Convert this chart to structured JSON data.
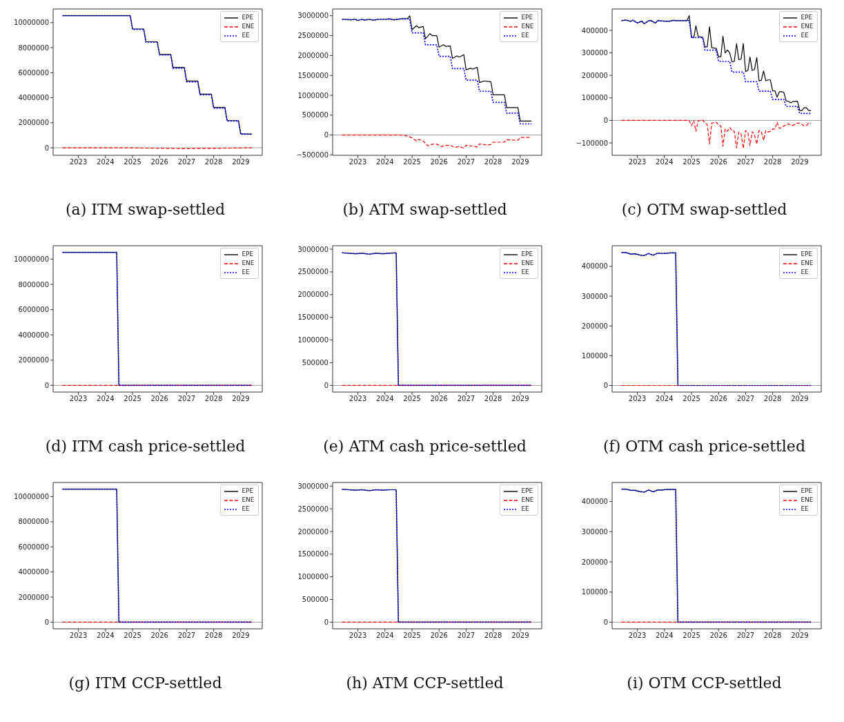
{
  "chart_data": [
    {
      "type": "line",
      "title": "(a) ITM swap-settled",
      "xlim": [
        "2022-01-25",
        "2029-10-18"
      ],
      "xticks": [
        "2023",
        "2024",
        "2025",
        "2026",
        "2027",
        "2028",
        "2029"
      ],
      "ylim": [
        -600000,
        11090000
      ],
      "yticks": [
        0,
        2000000,
        4000000,
        6000000,
        8000000,
        10000000
      ],
      "legend": "top right",
      "ref_lines": [
        {
          "axis": "y",
          "value": 0,
          "color": "#808080"
        }
      ],
      "series": [
        {
          "name": "EPE",
          "color": "#000000",
          "line_style": "solid",
          "x": [
            "2022-06",
            "2024-12",
            "2025-01",
            "2025-06",
            "2025-07",
            "2025-12",
            "2026-01",
            "2026-06",
            "2026-07",
            "2026-12",
            "2027-01",
            "2027-06",
            "2027-07",
            "2027-12",
            "2028-01",
            "2028-06",
            "2028-07",
            "2028-12",
            "2029-01",
            "2029-06"
          ],
          "values": [
            10560000,
            10560000,
            9490000,
            9490000,
            8470000,
            8470000,
            7460000,
            7460000,
            6420000,
            6420000,
            5340000,
            5340000,
            4290000,
            4290000,
            3220000,
            3220000,
            2170000,
            2170000,
            1100000,
            1100000
          ]
        },
        {
          "name": "ENE",
          "color": "#ff0000",
          "line_style": "dashed",
          "x": [
            "2022-06",
            "2024-12",
            "2025-06",
            "2026-01",
            "2026-06",
            "2027-01",
            "2027-06",
            "2028-01",
            "2028-06",
            "2029-01",
            "2029-06"
          ],
          "values": [
            0,
            0,
            -20000,
            -40000,
            -60000,
            -70000,
            -60000,
            -50000,
            -30000,
            -10000,
            0
          ]
        },
        {
          "name": "EE",
          "color": "#0000ff",
          "line_style": "dotted",
          "x": [
            "2022-06",
            "2024-12",
            "2025-01",
            "2025-06",
            "2025-07",
            "2025-12",
            "2026-01",
            "2026-06",
            "2026-07",
            "2026-12",
            "2027-01",
            "2027-06",
            "2027-07",
            "2027-12",
            "2028-01",
            "2028-06",
            "2028-07",
            "2028-12",
            "2029-01",
            "2029-06"
          ],
          "values": [
            10560000,
            10560000,
            9460000,
            9460000,
            8430000,
            8430000,
            7410000,
            7410000,
            6360000,
            6360000,
            5270000,
            5270000,
            4230000,
            4230000,
            3170000,
            3170000,
            2140000,
            2140000,
            1090000,
            1090000
          ]
        }
      ]
    },
    {
      "type": "line",
      "title": "(b) ATM swap-settled",
      "xlim": [
        "2022-01-25",
        "2029-10-18"
      ],
      "xticks": [
        "2023",
        "2024",
        "2025",
        "2026",
        "2027",
        "2028",
        "2029"
      ],
      "ylim": [
        -510000,
        3170000
      ],
      "yticks": [
        -500000,
        0,
        500000,
        1000000,
        1500000,
        2000000,
        2500000,
        3000000
      ],
      "legend": "top right",
      "ref_lines": [
        {
          "axis": "y",
          "value": 0,
          "color": "#808080"
        }
      ],
      "series": [
        {
          "name": "EPE",
          "color": "#000000",
          "line_style": "solid",
          "x": [
            "2022-06",
            "2022-10",
            "2022-12",
            "2023-01",
            "2023-03",
            "2023-04",
            "2023-06",
            "2023-08",
            "2023-10",
            "2024-01",
            "2024-03",
            "2024-05",
            "2024-08",
            "2024-11",
            "2024-12",
            "2025-01",
            "2025-03",
            "2025-04",
            "2025-06",
            "2025-07",
            "2025-09",
            "2025-10",
            "2025-12",
            "2026-01",
            "2026-03",
            "2026-04",
            "2026-06",
            "2026-07",
            "2026-09",
            "2026-10",
            "2026-12",
            "2027-01",
            "2027-03",
            "2027-04",
            "2027-06",
            "2027-07",
            "2027-09",
            "2027-12",
            "2028-01",
            "2028-06",
            "2028-07",
            "2028-12",
            "2029-01",
            "2029-06"
          ],
          "values": [
            2910000,
            2900000,
            2910000,
            2880000,
            2910000,
            2890000,
            2910000,
            2890000,
            2910000,
            2910000,
            2920000,
            2900000,
            2920000,
            2930000,
            3000000,
            2650000,
            2750000,
            2700000,
            2730000,
            2420000,
            2550000,
            2500000,
            2500000,
            2210000,
            2270000,
            2230000,
            2240000,
            1930000,
            1990000,
            1960000,
            2020000,
            1640000,
            1680000,
            1660000,
            1700000,
            1320000,
            1360000,
            1340000,
            1010000,
            1010000,
            690000,
            690000,
            350000,
            350000
          ]
        },
        {
          "name": "ENE",
          "color": "#ff0000",
          "line_style": "dashed",
          "x": [
            "2022-06",
            "2024-08",
            "2024-10",
            "2025-01",
            "2025-03",
            "2025-04",
            "2025-06",
            "2025-08",
            "2025-10",
            "2025-12",
            "2026-02",
            "2026-04",
            "2026-06",
            "2026-08",
            "2026-10",
            "2026-12",
            "2027-01",
            "2027-04",
            "2027-06",
            "2027-07",
            "2027-10",
            "2027-12",
            "2028-01",
            "2028-06",
            "2028-07",
            "2028-12",
            "2029-01",
            "2029-06"
          ],
          "values": [
            0,
            0,
            -10000,
            -70000,
            -150000,
            -110000,
            -150000,
            -270000,
            -230000,
            -230000,
            -290000,
            -260000,
            -260000,
            -310000,
            -290000,
            -330000,
            -260000,
            -280000,
            -300000,
            -220000,
            -250000,
            -240000,
            -180000,
            -180000,
            -120000,
            -130000,
            -60000,
            -60000
          ]
        },
        {
          "name": "EE",
          "color": "#0000ff",
          "line_style": "dotted",
          "x": [
            "2022-06",
            "2022-10",
            "2022-12",
            "2023-01",
            "2023-03",
            "2023-04",
            "2023-06",
            "2023-08",
            "2023-10",
            "2024-01",
            "2024-03",
            "2024-05",
            "2024-08",
            "2024-12",
            "2025-01",
            "2025-06",
            "2025-07",
            "2025-12",
            "2026-01",
            "2026-06",
            "2026-07",
            "2026-12",
            "2027-01",
            "2027-06",
            "2027-07",
            "2027-12",
            "2028-01",
            "2028-06",
            "2028-07",
            "2028-12",
            "2029-01",
            "2029-06"
          ],
          "values": [
            2910000,
            2900000,
            2910000,
            2880000,
            2910000,
            2890000,
            2910000,
            2890000,
            2910000,
            2910000,
            2920000,
            2900000,
            2920000,
            2920000,
            2570000,
            2570000,
            2270000,
            2270000,
            1980000,
            1980000,
            1670000,
            1670000,
            1380000,
            1380000,
            1100000,
            1100000,
            820000,
            820000,
            550000,
            550000,
            280000,
            280000
          ]
        }
      ]
    },
    {
      "type": "line",
      "title": "(c) OTM swap-settled",
      "xlim": [
        "2022-01-25",
        "2029-10-18"
      ],
      "xticks": [
        "2023",
        "2024",
        "2025",
        "2026",
        "2027",
        "2028",
        "2029"
      ],
      "ylim": [
        -155000,
        495000
      ],
      "yticks": [
        -100000,
        0,
        100000,
        200000,
        300000,
        400000
      ],
      "legend": "top right",
      "ref_lines": [
        {
          "axis": "y",
          "value": 0,
          "color": "#808080"
        }
      ],
      "series": [
        {
          "name": "EPE",
          "color": "#000000",
          "line_style": "solid",
          "x": [
            "2022-06",
            "2022-08",
            "2022-10",
            "2022-11",
            "2023-01",
            "2023-03",
            "2023-04",
            "2023-06",
            "2023-07",
            "2023-09",
            "2023-10",
            "2024-01",
            "2024-03",
            "2024-05",
            "2024-06",
            "2024-09",
            "2024-11",
            "2024-12",
            "2025-01",
            "2025-02",
            "2025-03",
            "2025-04",
            "2025-06",
            "2025-07",
            "2025-08",
            "2025-09",
            "2025-10",
            "2025-12",
            "2026-01",
            "2026-02",
            "2026-03",
            "2026-04",
            "2026-05",
            "2026-06",
            "2026-07",
            "2026-08",
            "2026-09",
            "2026-10",
            "2026-11",
            "2026-12",
            "2027-01",
            "2027-02",
            "2027-03",
            "2027-04",
            "2027-05",
            "2027-06",
            "2027-07",
            "2027-08",
            "2027-09",
            "2027-10",
            "2027-11",
            "2027-12",
            "2028-01",
            "2028-02",
            "2028-03",
            "2028-04",
            "2028-05",
            "2028-06",
            "2028-07",
            "2028-08",
            "2028-09",
            "2028-10",
            "2028-12",
            "2029-01",
            "2029-02",
            "2029-03",
            "2029-04",
            "2029-05",
            "2029-06"
          ],
          "values": [
            443000,
            446000,
            440000,
            445000,
            433000,
            441000,
            430000,
            442000,
            444000,
            432000,
            443000,
            441000,
            440000,
            445000,
            443000,
            443000,
            443000,
            466000,
            368000,
            368000,
            420000,
            372000,
            370000,
            327000,
            327000,
            416000,
            323000,
            320000,
            283000,
            283000,
            374000,
            300000,
            313000,
            300000,
            260000,
            262000,
            341000,
            270000,
            272000,
            341000,
            217000,
            222000,
            282000,
            222000,
            226000,
            279000,
            176000,
            178000,
            220000,
            176000,
            180000,
            180000,
            131000,
            131000,
            103000,
            127000,
            128000,
            124000,
            87000,
            85000,
            78000,
            84000,
            85000,
            44000,
            44000,
            56000,
            56000,
            44000,
            44000
          ]
        },
        {
          "name": "ENE",
          "color": "#ff0000",
          "line_style": "dashed",
          "x": [
            "2022-06",
            "2024-12",
            "2025-01",
            "2025-02",
            "2025-03",
            "2025-04",
            "2025-06",
            "2025-07",
            "2025-08",
            "2025-09",
            "2025-10",
            "2025-12",
            "2026-01",
            "2026-02",
            "2026-03",
            "2026-04",
            "2026-05",
            "2026-06",
            "2026-07",
            "2026-08",
            "2026-09",
            "2026-10",
            "2026-11",
            "2026-12",
            "2027-01",
            "2027-02",
            "2027-03",
            "2027-04",
            "2027-05",
            "2027-06",
            "2027-07",
            "2027-08",
            "2027-09",
            "2027-10",
            "2027-11",
            "2027-12",
            "2028-01",
            "2028-02",
            "2028-03",
            "2028-04",
            "2028-05",
            "2028-06",
            "2028-07",
            "2028-08",
            "2028-09",
            "2028-10",
            "2028-12",
            "2029-01",
            "2029-03",
            "2029-04",
            "2029-05",
            "2029-06"
          ],
          "values": [
            0,
            0,
            -22000,
            -2000,
            -48000,
            -2000,
            2000,
            -12000,
            -18000,
            -105000,
            -12000,
            -8000,
            -20000,
            -25000,
            -115000,
            -38000,
            -48000,
            -32000,
            -45000,
            -48000,
            -122000,
            -52000,
            -60000,
            -124000,
            -45000,
            -55000,
            -112000,
            -50000,
            -65000,
            -105000,
            -45000,
            -50000,
            -88000,
            -45000,
            -52000,
            -48000,
            -38000,
            -38000,
            -8000,
            -35000,
            -32000,
            -25000,
            -20000,
            -15000,
            -22000,
            -22000,
            -12000,
            -12000,
            -24000,
            -22000,
            -12000,
            -12000
          ]
        },
        {
          "name": "EE",
          "color": "#0000ff",
          "line_style": "dotted",
          "x": [
            "2022-06",
            "2022-08",
            "2022-10",
            "2022-11",
            "2023-01",
            "2023-03",
            "2023-04",
            "2023-06",
            "2023-07",
            "2023-09",
            "2023-10",
            "2024-01",
            "2024-03",
            "2024-05",
            "2024-06",
            "2024-09",
            "2024-12",
            "2025-01",
            "2025-06",
            "2025-07",
            "2025-12",
            "2026-01",
            "2026-06",
            "2026-07",
            "2026-12",
            "2027-01",
            "2027-06",
            "2027-07",
            "2027-12",
            "2028-01",
            "2028-06",
            "2028-07",
            "2028-12",
            "2029-01",
            "2029-06"
          ],
          "values": [
            443000,
            446000,
            440000,
            445000,
            433000,
            441000,
            430000,
            442000,
            444000,
            432000,
            443000,
            441000,
            440000,
            445000,
            443000,
            443000,
            443000,
            368000,
            368000,
            312000,
            312000,
            262000,
            262000,
            215000,
            215000,
            172000,
            172000,
            130000,
            130000,
            93000,
            93000,
            62000,
            62000,
            31000,
            31000
          ]
        }
      ]
    },
    {
      "type": "line",
      "title": "(d) ITM cash price-settled",
      "xlim": [
        "2022-01-25",
        "2029-10-18"
      ],
      "xticks": [
        "2023",
        "2024",
        "2025",
        "2026",
        "2027",
        "2028",
        "2029"
      ],
      "ylim": [
        -530000,
        11060000
      ],
      "yticks": [
        0,
        2000000,
        4000000,
        6000000,
        8000000,
        10000000
      ],
      "legend": "top right",
      "ref_lines": [
        {
          "axis": "y",
          "value": 0,
          "color": "#808080"
        }
      ],
      "series": [
        {
          "name": "EPE",
          "color": "#000000",
          "line_style": "solid",
          "x": [
            "2022-06",
            "2024-06",
            "2024-07",
            "2029-06"
          ],
          "values": [
            10530000,
            10530000,
            0,
            0
          ]
        },
        {
          "name": "ENE",
          "color": "#ff0000",
          "line_style": "dashed",
          "x": [
            "2022-06",
            "2029-06"
          ],
          "values": [
            0,
            0
          ]
        },
        {
          "name": "EE",
          "color": "#0000ff",
          "line_style": "dotted",
          "x": [
            "2022-06",
            "2024-06",
            "2024-07",
            "2029-06"
          ],
          "values": [
            10530000,
            10530000,
            0,
            0
          ]
        }
      ]
    },
    {
      "type": "line",
      "title": "(e) ATM cash price-settled",
      "xlim": [
        "2022-01-25",
        "2029-10-18"
      ],
      "xticks": [
        "2023",
        "2024",
        "2025",
        "2026",
        "2027",
        "2028",
        "2029"
      ],
      "ylim": [
        -146000,
        3076000
      ],
      "yticks": [
        0,
        500000,
        1000000,
        1500000,
        2000000,
        2500000,
        3000000
      ],
      "legend": "top right",
      "ref_lines": [
        {
          "axis": "y",
          "value": 0,
          "color": "#808080"
        }
      ],
      "series": [
        {
          "name": "EPE",
          "color": "#000000",
          "line_style": "solid",
          "x": [
            "2022-06",
            "2022-09",
            "2022-12",
            "2023-03",
            "2023-06",
            "2023-09",
            "2023-12",
            "2024-03",
            "2024-06",
            "2024-07",
            "2029-06"
          ],
          "values": [
            2920000,
            2910000,
            2900000,
            2910000,
            2890000,
            2910000,
            2900000,
            2910000,
            2920000,
            0,
            0
          ]
        },
        {
          "name": "ENE",
          "color": "#ff0000",
          "line_style": "dashed",
          "x": [
            "2022-06",
            "2029-06"
          ],
          "values": [
            0,
            0
          ]
        },
        {
          "name": "EE",
          "color": "#0000ff",
          "line_style": "dotted",
          "x": [
            "2022-06",
            "2022-09",
            "2022-12",
            "2023-03",
            "2023-06",
            "2023-09",
            "2023-12",
            "2024-03",
            "2024-06",
            "2024-07",
            "2029-06"
          ],
          "values": [
            2920000,
            2910000,
            2900000,
            2910000,
            2890000,
            2910000,
            2900000,
            2910000,
            2920000,
            0,
            0
          ]
        }
      ]
    },
    {
      "type": "line",
      "title": "(f) OTM cash price-settled",
      "xlim": [
        "2022-01-25",
        "2029-10-18"
      ],
      "xticks": [
        "2023",
        "2024",
        "2025",
        "2026",
        "2027",
        "2028",
        "2029"
      ],
      "ylim": [
        -22000,
        469000
      ],
      "yticks": [
        0,
        100000,
        200000,
        300000,
        400000
      ],
      "legend": "top right",
      "ref_lines": [
        {
          "axis": "y",
          "value": 0,
          "color": "#808080"
        }
      ],
      "series": [
        {
          "name": "EPE",
          "color": "#000000",
          "line_style": "solid",
          "x": [
            "2022-06",
            "2022-08",
            "2022-10",
            "2022-12",
            "2023-02",
            "2023-04",
            "2023-06",
            "2023-08",
            "2023-10",
            "2023-12",
            "2024-02",
            "2024-04",
            "2024-06",
            "2024-07",
            "2029-06"
          ],
          "values": [
            446000,
            446000,
            441000,
            442000,
            438000,
            436000,
            443000,
            437000,
            444000,
            443000,
            444000,
            445000,
            445000,
            0,
            0
          ]
        },
        {
          "name": "ENE",
          "color": "#ff0000",
          "line_style": "dashed",
          "x": [
            "2022-06",
            "2029-06"
          ],
          "values": [
            0,
            0
          ]
        },
        {
          "name": "EE",
          "color": "#0000ff",
          "line_style": "dotted",
          "x": [
            "2022-06",
            "2022-08",
            "2022-10",
            "2022-12",
            "2023-02",
            "2023-04",
            "2023-06",
            "2023-08",
            "2023-10",
            "2023-12",
            "2024-02",
            "2024-04",
            "2024-06",
            "2024-07",
            "2029-06"
          ],
          "values": [
            446000,
            446000,
            441000,
            442000,
            438000,
            436000,
            443000,
            437000,
            444000,
            443000,
            444000,
            445000,
            445000,
            0,
            0
          ]
        }
      ]
    },
    {
      "type": "line",
      "title": "(g) ITM CCP-settled",
      "xlim": [
        "2022-01-25",
        "2029-10-18"
      ],
      "xticks": [
        "2023",
        "2024",
        "2025",
        "2026",
        "2027",
        "2028",
        "2029"
      ],
      "ylim": [
        -530000,
        11130000
      ],
      "yticks": [
        0,
        2000000,
        4000000,
        6000000,
        8000000,
        10000000
      ],
      "legend": "top right",
      "ref_lines": [
        {
          "axis": "y",
          "value": 0,
          "color": "#808080"
        }
      ],
      "series": [
        {
          "name": "EPE",
          "color": "#000000",
          "line_style": "solid",
          "x": [
            "2022-06",
            "2024-06",
            "2024-07",
            "2029-06"
          ],
          "values": [
            10600000,
            10600000,
            0,
            0
          ]
        },
        {
          "name": "ENE",
          "color": "#ff0000",
          "line_style": "dashed",
          "x": [
            "2022-06",
            "2029-06"
          ],
          "values": [
            0,
            0
          ]
        },
        {
          "name": "EE",
          "color": "#0000ff",
          "line_style": "dotted",
          "x": [
            "2022-06",
            "2024-06",
            "2024-07",
            "2029-06"
          ],
          "values": [
            10600000,
            10600000,
            0,
            0
          ]
        }
      ]
    },
    {
      "type": "line",
      "title": "(h) ATM CCP-settled",
      "xlim": [
        "2022-01-25",
        "2029-10-18"
      ],
      "xticks": [
        "2023",
        "2024",
        "2025",
        "2026",
        "2027",
        "2028",
        "2029"
      ],
      "ylim": [
        -147000,
        3080000
      ],
      "yticks": [
        0,
        500000,
        1000000,
        1500000,
        2000000,
        2500000,
        3000000
      ],
      "legend": "top right",
      "ref_lines": [
        {
          "axis": "y",
          "value": 0,
          "color": "#808080"
        }
      ],
      "series": [
        {
          "name": "EPE",
          "color": "#000000",
          "line_style": "solid",
          "x": [
            "2022-06",
            "2022-09",
            "2022-12",
            "2023-03",
            "2023-06",
            "2023-09",
            "2023-12",
            "2024-03",
            "2024-06",
            "2024-07",
            "2029-06"
          ],
          "values": [
            2930000,
            2920000,
            2910000,
            2920000,
            2900000,
            2920000,
            2910000,
            2920000,
            2920000,
            0,
            0
          ]
        },
        {
          "name": "ENE",
          "color": "#ff0000",
          "line_style": "dashed",
          "x": [
            "2022-06",
            "2029-06"
          ],
          "values": [
            0,
            0
          ]
        },
        {
          "name": "EE",
          "color": "#0000ff",
          "line_style": "dotted",
          "x": [
            "2022-06",
            "2022-09",
            "2022-12",
            "2023-03",
            "2023-06",
            "2023-09",
            "2023-12",
            "2024-03",
            "2024-06",
            "2024-07",
            "2029-06"
          ],
          "values": [
            2930000,
            2920000,
            2910000,
            2920000,
            2900000,
            2920000,
            2910000,
            2920000,
            2920000,
            0,
            0
          ]
        }
      ]
    },
    {
      "type": "line",
      "title": "(i) OTM CCP-settled",
      "xlim": [
        "2022-01-25",
        "2029-10-18"
      ],
      "xticks": [
        "2023",
        "2024",
        "2025",
        "2026",
        "2027",
        "2028",
        "2029"
      ],
      "ylim": [
        -22000,
        463000
      ],
      "yticks": [
        0,
        100000,
        200000,
        300000,
        400000
      ],
      "legend": "top right",
      "ref_lines": [
        {
          "axis": "y",
          "value": 0,
          "color": "#808080"
        }
      ],
      "series": [
        {
          "name": "EPE",
          "color": "#000000",
          "line_style": "solid",
          "x": [
            "2022-06",
            "2022-08",
            "2022-10",
            "2022-12",
            "2023-02",
            "2023-04",
            "2023-06",
            "2023-08",
            "2023-10",
            "2023-12",
            "2024-02",
            "2024-04",
            "2024-06",
            "2024-07",
            "2029-06"
          ],
          "values": [
            441000,
            441000,
            437000,
            437000,
            433000,
            431000,
            438000,
            432000,
            438000,
            438000,
            440000,
            440000,
            440000,
            0,
            0
          ]
        },
        {
          "name": "ENE",
          "color": "#ff0000",
          "line_style": "dashed",
          "x": [
            "2022-06",
            "2029-06"
          ],
          "values": [
            0,
            0
          ]
        },
        {
          "name": "EE",
          "color": "#0000ff",
          "line_style": "dotted",
          "x": [
            "2022-06",
            "2022-08",
            "2022-10",
            "2022-12",
            "2023-02",
            "2023-04",
            "2023-06",
            "2023-08",
            "2023-10",
            "2023-12",
            "2024-02",
            "2024-04",
            "2024-06",
            "2024-07",
            "2029-06"
          ],
          "values": [
            441000,
            441000,
            437000,
            437000,
            433000,
            431000,
            438000,
            432000,
            438000,
            438000,
            440000,
            440000,
            440000,
            0,
            0
          ]
        }
      ]
    }
  ]
}
